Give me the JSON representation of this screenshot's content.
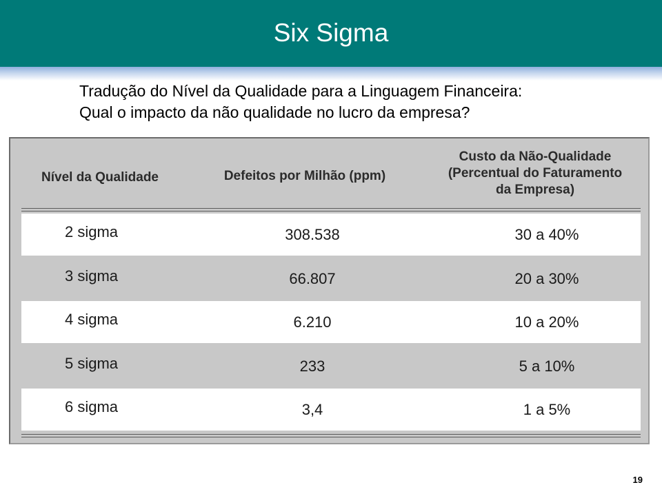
{
  "title": "Six Sigma",
  "subtitle": {
    "line1": "Tradução do Nível da Qualidade para a Linguagem Financeira:",
    "line2": "Qual o impacto da não qualidade no lucro da empresa?"
  },
  "table": {
    "headers": {
      "col1": "Nível da Qualidade",
      "col2": "Defeitos por Milhão (ppm)",
      "col3_line1": "Custo da Não-Qualidade",
      "col3_line2": "(Percentual do Faturamento",
      "col3_line3": "da Empresa)"
    },
    "rows": [
      {
        "level": "2 sigma",
        "ppm": "308.538",
        "cost": "30 a 40%"
      },
      {
        "level": "3 sigma",
        "ppm": "66.807",
        "cost": "20 a 30%"
      },
      {
        "level": "4 sigma",
        "ppm": "6.210",
        "cost": "10 a 20%"
      },
      {
        "level": "5 sigma",
        "ppm": "233",
        "cost": "5 a 10%"
      },
      {
        "level": "6 sigma",
        "ppm": "3,4",
        "cost": "1 a 5%"
      }
    ]
  },
  "page_number": "19",
  "colors": {
    "title_bar": "#007a78",
    "table_background": "#c8c8c8",
    "white_row": "#ffffff"
  }
}
